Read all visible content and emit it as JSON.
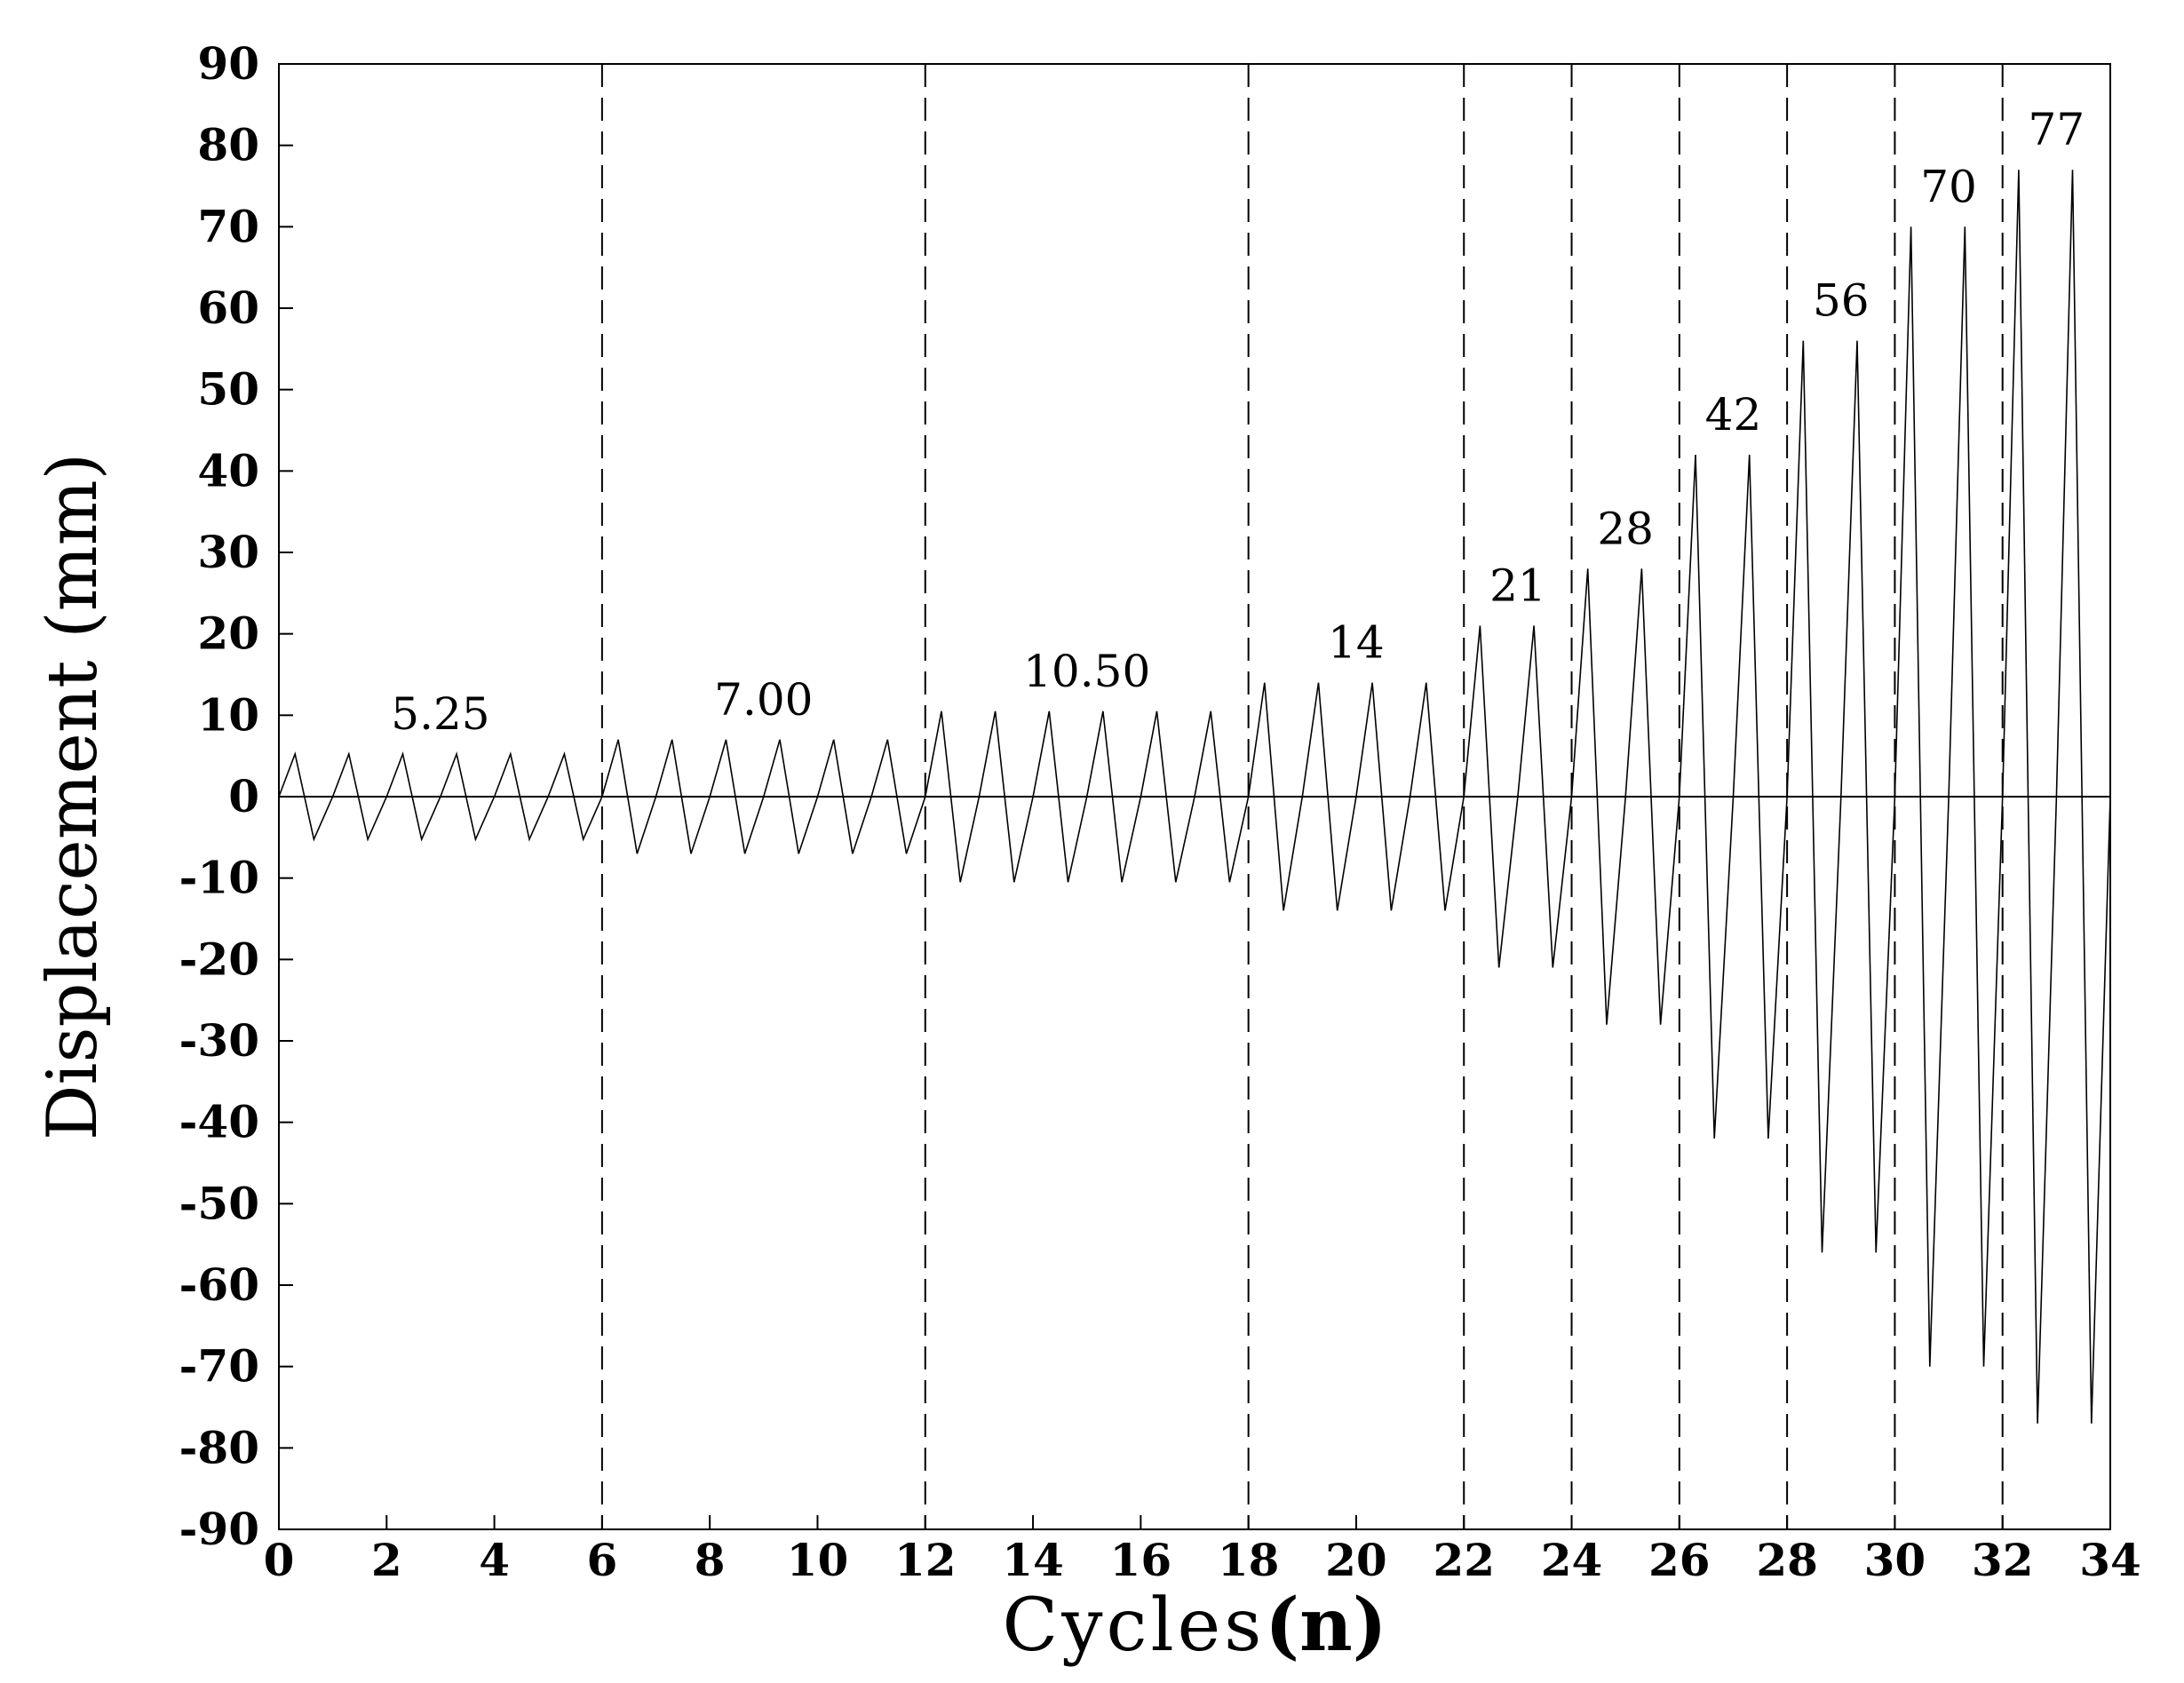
{
  "chart_data": {
    "type": "line",
    "title": "",
    "xlabel": "Cycles",
    "xlabel_unit": "(n)",
    "ylabel": "Displacement (mm)",
    "xlim": [
      0,
      34
    ],
    "ylim": [
      -90,
      90
    ],
    "xticks": [
      "0",
      "2",
      "4",
      "6",
      "8",
      "10",
      "12",
      "14",
      "16",
      "18",
      "20",
      "22",
      "24",
      "26",
      "28",
      "30",
      "32",
      "34"
    ],
    "yticks": [
      "90",
      "80",
      "70",
      "60",
      "50",
      "40",
      "30",
      "20",
      "10",
      "0",
      "-10",
      "-20",
      "-30",
      "-40",
      "-50",
      "-60",
      "-70",
      "-80",
      "-90"
    ],
    "grid": false,
    "legend": "none",
    "stage_boundaries": [
      6,
      12,
      18,
      22,
      24,
      26,
      28,
      30,
      32
    ],
    "stages": [
      {
        "amplitude": 5.25,
        "label": "5.25",
        "cycles": 6,
        "start": 0
      },
      {
        "amplitude": 7.0,
        "label": "7.00",
        "cycles": 6,
        "start": 6
      },
      {
        "amplitude": 10.5,
        "label": "10.50",
        "cycles": 6,
        "start": 12
      },
      {
        "amplitude": 14,
        "label": "14",
        "cycles": 4,
        "start": 18
      },
      {
        "amplitude": 21,
        "label": "21",
        "cycles": 2,
        "start": 22
      },
      {
        "amplitude": 28,
        "label": "28",
        "cycles": 2,
        "start": 24
      },
      {
        "amplitude": 42,
        "label": "42",
        "cycles": 2,
        "start": 26
      },
      {
        "amplitude": 56,
        "label": "56",
        "cycles": 2,
        "start": 28
      },
      {
        "amplitude": 70,
        "label": "70",
        "cycles": 2,
        "start": 30
      },
      {
        "amplitude": 77,
        "label": "77",
        "cycles": 2,
        "start": 32
      }
    ],
    "series": [
      {
        "name": "",
        "color": "#000000",
        "waveform": "triangular"
      }
    ]
  }
}
